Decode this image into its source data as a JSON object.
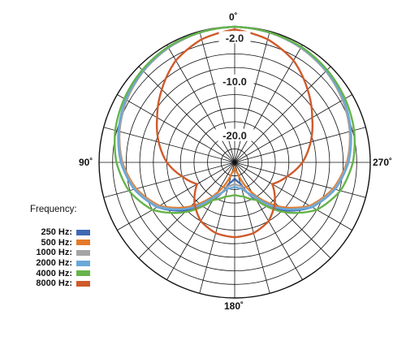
{
  "chart_data": {
    "type": "polar",
    "angle_labels": {
      "top": "0˚",
      "left": "90˚",
      "right": "270˚",
      "bottom": "180˚"
    },
    "angle_ticks_deg": [
      0,
      90,
      180,
      270
    ],
    "radial_labels": [
      "-2.0",
      "-10.0",
      "-20.0"
    ],
    "radial_label_values_db": [
      -2,
      -10,
      -20
    ],
    "radial_range_db": [
      -25,
      0
    ],
    "grid": true,
    "legend": {
      "title": "Frequency:",
      "placement": "bottom-left"
    },
    "series": [
      {
        "name": "250 Hz:",
        "color": "#3f68b3",
        "angles_deg": [
          0,
          15,
          30,
          45,
          60,
          75,
          90,
          105,
          120,
          135,
          150,
          165,
          180
        ],
        "values_db": [
          0,
          -0.2,
          -0.6,
          -1.2,
          -2.0,
          -3.0,
          -4.2,
          -6.0,
          -8.5,
          -12.5,
          -17,
          -21,
          -22
        ]
      },
      {
        "name": "500 Hz:",
        "color": "#e57a2a",
        "angles_deg": [
          0,
          15,
          30,
          45,
          60,
          75,
          90,
          105,
          120,
          135,
          150,
          165,
          180
        ],
        "values_db": [
          0,
          -0.2,
          -0.6,
          -1.2,
          -2.0,
          -3.0,
          -4.3,
          -6.2,
          -9.0,
          -13.5,
          -18.5,
          -23,
          -24
        ]
      },
      {
        "name": "1000 Hz:",
        "color": "#a4a4a4",
        "angles_deg": [
          0,
          15,
          30,
          45,
          60,
          75,
          90,
          105,
          120,
          135,
          150,
          165,
          180
        ],
        "values_db": [
          0,
          -0.2,
          -0.6,
          -1.2,
          -2.0,
          -3.0,
          -4.2,
          -6.0,
          -8.8,
          -13.0,
          -17.5,
          -20.5,
          -21
        ]
      },
      {
        "name": "2000 Hz:",
        "color": "#6aa8d8",
        "angles_deg": [
          0,
          15,
          30,
          45,
          60,
          75,
          90,
          105,
          120,
          135,
          150,
          165,
          180
        ],
        "values_db": [
          0,
          -0.2,
          -0.5,
          -1.1,
          -1.8,
          -2.8,
          -4.0,
          -5.8,
          -8.5,
          -13,
          -18,
          -20,
          -20.5
        ]
      },
      {
        "name": "4000 Hz:",
        "color": "#66b44a",
        "angles_deg": [
          0,
          15,
          30,
          45,
          60,
          75,
          90,
          105,
          120,
          135,
          150,
          165,
          180
        ],
        "values_db": [
          0,
          -0.2,
          -0.4,
          -0.9,
          -1.5,
          -2.2,
          -3.2,
          -4.8,
          -7.5,
          -12.0,
          -17.0,
          -18.5,
          -19
        ]
      },
      {
        "name": "8000 Hz:",
        "color": "#cf5a2a",
        "angles_deg": [
          0,
          15,
          30,
          45,
          60,
          75,
          90,
          105,
          120,
          135,
          150,
          165,
          180
        ],
        "values_db": [
          -0.5,
          -1.5,
          -3.3,
          -6.0,
          -8.5,
          -10.5,
          -12.5,
          -15.0,
          -17.0,
          -14.5,
          -12.5,
          -11.5,
          -11.2
        ]
      }
    ]
  }
}
